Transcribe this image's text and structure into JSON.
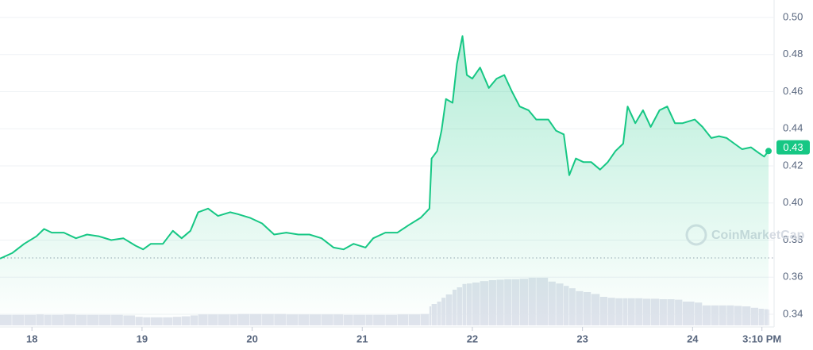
{
  "chart_data": {
    "type": "line",
    "color": "#16c784",
    "x": [
      17.71,
      17.82,
      17.93,
      18.04,
      18.11,
      18.18,
      18.29,
      18.4,
      18.5,
      18.61,
      18.72,
      18.83,
      18.94,
      19.01,
      19.08,
      19.19,
      19.28,
      19.36,
      19.44,
      19.51,
      19.6,
      19.69,
      19.8,
      19.87,
      19.98,
      20.09,
      20.2,
      20.31,
      20.42,
      20.52,
      20.63,
      20.74,
      20.83,
      20.92,
      21.03,
      21.1,
      21.21,
      21.32,
      21.42,
      21.53,
      21.61,
      21.63,
      21.68,
      21.72,
      21.76,
      21.82,
      21.86,
      21.91,
      21.95,
      22.0,
      22.07,
      22.15,
      22.22,
      22.29,
      22.36,
      22.43,
      22.51,
      22.58,
      22.69,
      22.76,
      22.83,
      22.88,
      22.94,
      23.01,
      23.08,
      23.16,
      23.23,
      23.3,
      23.37,
      23.41,
      23.48,
      23.55,
      23.62,
      23.7,
      23.77,
      23.84,
      23.91,
      24.02,
      24.09,
      24.17,
      24.24,
      24.31,
      24.38,
      24.45,
      24.53,
      24.6,
      24.65,
      24.69
    ],
    "values": [
      0.37,
      0.373,
      0.378,
      0.382,
      0.386,
      0.384,
      0.384,
      0.381,
      0.383,
      0.382,
      0.38,
      0.381,
      0.377,
      0.375,
      0.378,
      0.378,
      0.385,
      0.381,
      0.385,
      0.395,
      0.397,
      0.393,
      0.395,
      0.394,
      0.392,
      0.389,
      0.383,
      0.384,
      0.383,
      0.383,
      0.381,
      0.376,
      0.375,
      0.378,
      0.376,
      0.381,
      0.384,
      0.384,
      0.388,
      0.392,
      0.397,
      0.424,
      0.428,
      0.439,
      0.456,
      0.454,
      0.475,
      0.49,
      0.469,
      0.467,
      0.473,
      0.462,
      0.467,
      0.469,
      0.46,
      0.452,
      0.45,
      0.445,
      0.445,
      0.439,
      0.437,
      0.415,
      0.424,
      0.422,
      0.422,
      0.418,
      0.422,
      0.428,
      0.432,
      0.452,
      0.443,
      0.45,
      0.441,
      0.45,
      0.452,
      0.443,
      0.443,
      0.445,
      0.441,
      0.435,
      0.436,
      0.435,
      0.432,
      0.429,
      0.43,
      0.427,
      0.425,
      0.428
    ],
    "volume": [
      22,
      22,
      22,
      23,
      22,
      22,
      23,
      22,
      22,
      22,
      22,
      21,
      18,
      17,
      17,
      17,
      18,
      19,
      21,
      23,
      23,
      23,
      23,
      24,
      24,
      24,
      24,
      23,
      23,
      23,
      23,
      23,
      22,
      22,
      22,
      22,
      22,
      23,
      23,
      24,
      40,
      45,
      50,
      58,
      65,
      75,
      80,
      87,
      88,
      90,
      93,
      95,
      96,
      97,
      97,
      98,
      100,
      100,
      92,
      88,
      83,
      78,
      72,
      70,
      66,
      60,
      58,
      57,
      57,
      57,
      57,
      56,
      56,
      55,
      55,
      54,
      50,
      48,
      42,
      42,
      42,
      42,
      41,
      40,
      37,
      35,
      34,
      33
    ],
    "vlim": [
      0,
      100
    ],
    "xlim": [
      17.71,
      24.69
    ],
    "xticks": [
      18,
      19,
      20,
      21,
      22,
      23,
      24,
      {
        "value": 24.63,
        "label": "3:10 PM"
      }
    ],
    "ylim": [
      0.34,
      0.5
    ],
    "yticks": [
      0.34,
      0.36,
      0.38,
      {
        "value": 0.4,
        "label": "0.40"
      },
      0.42,
      0.44,
      0.46,
      0.48,
      {
        "value": 0.5,
        "label": "0.50"
      }
    ],
    "reference_line": 0.3704,
    "price_tag": 0.43,
    "watermark": "CoinMarketCap",
    "grid": true
  }
}
